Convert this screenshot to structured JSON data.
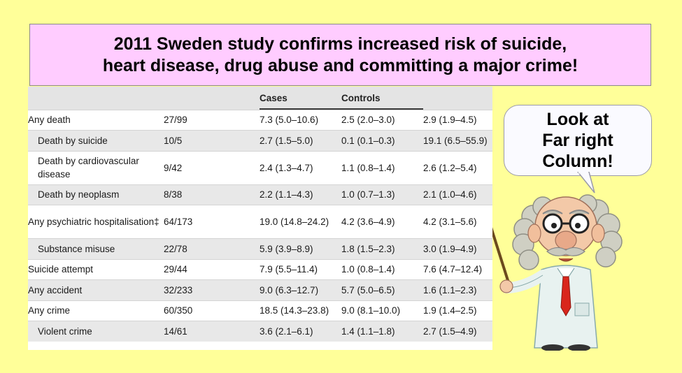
{
  "title": {
    "line1": "2011 Sweden study confirms increased risk of suicide,",
    "line2": "heart disease, drug abuse and committing a major crime!"
  },
  "bubble": {
    "line1": "Look at",
    "line2": "Far right",
    "line3": "Column!"
  },
  "table": {
    "headers": [
      "",
      "",
      "Cases",
      "Controls",
      ""
    ],
    "rows": [
      {
        "label": "Any death",
        "n": "27/99",
        "cases": "7.3 (5.0–10.6)",
        "controls": "2.5 (2.0–3.0)",
        "ratio": "2.9 (1.9–4.5)"
      },
      {
        "label": "Death by suicide",
        "n": "10/5",
        "cases": "2.7 (1.5–5.0)",
        "controls": "0.1 (0.1–0.3)",
        "ratio": "19.1 (6.5–55.9)"
      },
      {
        "label": "Death by cardiovascular disease",
        "n": "9/42",
        "cases": "2.4 (1.3–4.7)",
        "controls": "1.1 (0.8–1.4)",
        "ratio": "2.6 (1.2–5.4)"
      },
      {
        "label": "Death by neoplasm",
        "n": "8/38",
        "cases": "2.2 (1.1–4.3)",
        "controls": "1.0 (0.7–1.3)",
        "ratio": "2.1 (1.0–4.6)"
      },
      {
        "label": "Any psychiatric hospitalisation‡",
        "n": "64/173",
        "cases": "19.0 (14.8–24.2)",
        "controls": "4.2 (3.6–4.9)",
        "ratio": "4.2 (3.1–5.6)"
      },
      {
        "label": "Substance misuse",
        "n": "22/78",
        "cases": "5.9 (3.9–8.9)",
        "controls": "1.8 (1.5–2.3)",
        "ratio": "3.0 (1.9–4.9)"
      },
      {
        "label": "Suicide attempt",
        "n": "29/44",
        "cases": "7.9 (5.5–11.4)",
        "controls": "1.0 (0.8–1.4)",
        "ratio": "7.6 (4.7–12.4)"
      },
      {
        "label": "Any accident",
        "n": "32/233",
        "cases": "9.0 (6.3–12.7)",
        "controls": "5.7 (5.0–6.5)",
        "ratio": "1.6 (1.1–2.3)"
      },
      {
        "label": "Any crime",
        "n": "60/350",
        "cases": "18.5 (14.3–23.8)",
        "controls": "9.0 (8.1–10.0)",
        "ratio": "1.9 (1.4–2.5)"
      },
      {
        "label": "Violent crime",
        "n": "14/61",
        "cases": "3.6 (2.1–6.1)",
        "controls": "1.4 (1.1–1.8)",
        "ratio": "2.7 (1.5–4.9)"
      }
    ]
  },
  "colors": {
    "page_background": "#ffff99",
    "title_background": "#ffccff",
    "row_shade": "#e8e8e8"
  },
  "icons": {
    "cartoon": "professor-with-pointer-icon"
  }
}
